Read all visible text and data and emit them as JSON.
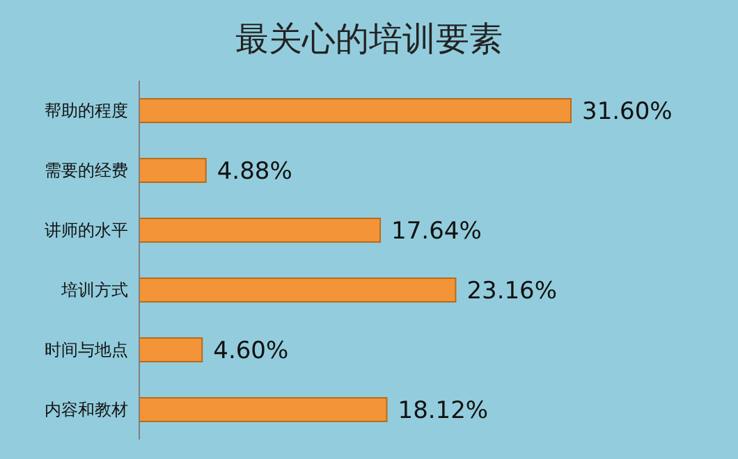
{
  "chart_data": {
    "type": "bar",
    "orientation": "horizontal",
    "title": "最关心的培训要素",
    "categories": [
      "帮助的程度",
      "需要的经费",
      "讲师的水平",
      "培训方式",
      "时间与地点",
      "内容和教材"
    ],
    "values": [
      31.6,
      4.88,
      17.64,
      23.16,
      4.6,
      18.12
    ],
    "value_labels": [
      "31.60%",
      "4.88%",
      "17.64%",
      "23.16%",
      "4.60%",
      "18.12%"
    ],
    "color": "#f29437"
  }
}
